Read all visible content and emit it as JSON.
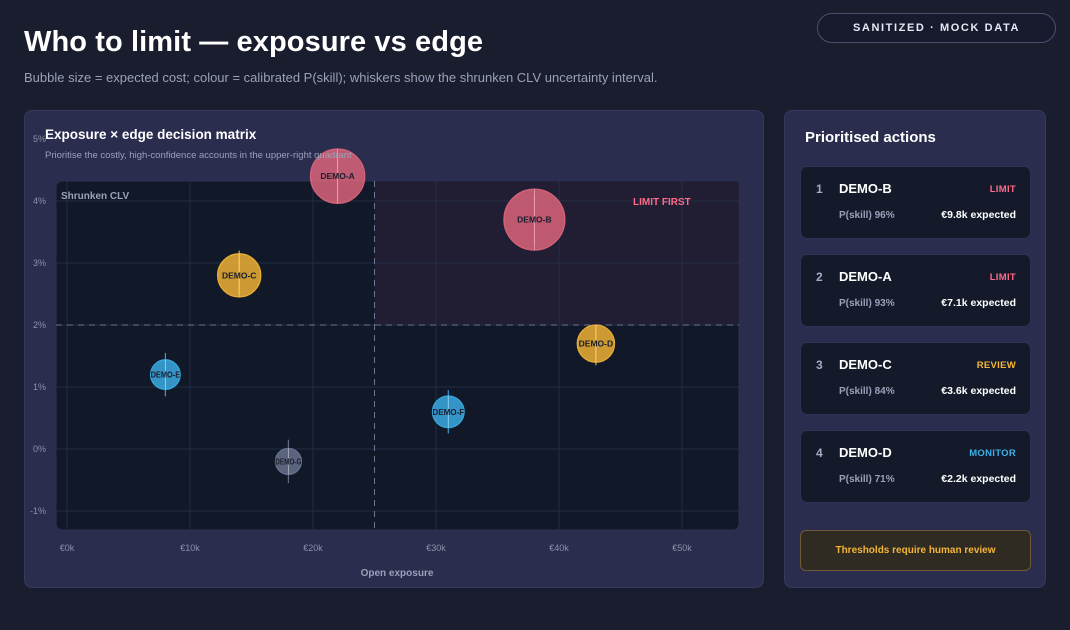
{
  "header": {
    "title": "Who to limit — exposure vs edge",
    "subtitle": "Bubble size = expected cost; colour = calibrated P(skill); whiskers show the shrunken CLV uncertainty interval.",
    "badge": "SANITIZED · MOCK DATA"
  },
  "chart": {
    "title": "Exposure × edge decision matrix",
    "subtitle": "Prioritise the costly, high-confidence accounts in the upper-right quadrant",
    "quadrant_label": "LIMIT FIRST"
  },
  "colors": {
    "limit": "#e0667d",
    "review": "#f5b636",
    "monitor": "#3cb0e8",
    "neutral": "#6b7590"
  },
  "chart_data": {
    "type": "scatter",
    "title": "Exposure × edge decision matrix",
    "xlabel": "Open exposure",
    "ylabel": "Shrunken CLV",
    "xlim": [
      0,
      55000
    ],
    "ylim": [
      -1.2,
      5.1
    ],
    "x_ticks": [
      0,
      10000,
      20000,
      30000,
      40000,
      50000
    ],
    "x_tick_labels": [
      "€0k",
      "€10k",
      "€20k",
      "€30k",
      "€40k",
      "€50k"
    ],
    "y_ticks": [
      -1,
      0,
      1,
      2,
      3,
      4,
      5
    ],
    "y_tick_labels": [
      "-1%",
      "0%",
      "1%",
      "2%",
      "3%",
      "4%",
      "5%"
    ],
    "x_threshold": 25000,
    "y_threshold": 2,
    "grid": true,
    "points": [
      {
        "label": "DEMO-A",
        "x": 22000,
        "y": 4.4,
        "y_low": 4.0,
        "y_high": 4.7,
        "cost": 7.1,
        "color": "#e0667d"
      },
      {
        "label": "DEMO-B",
        "x": 38000,
        "y": 3.7,
        "y_low": 3.3,
        "y_high": 4.1,
        "cost": 9.8,
        "color": "#e0667d"
      },
      {
        "label": "DEMO-C",
        "x": 14000,
        "y": 2.8,
        "y_low": 2.5,
        "y_high": 3.2,
        "cost": 3.6,
        "color": "#f5b636"
      },
      {
        "label": "DEMO-D",
        "x": 43000,
        "y": 1.7,
        "y_low": 1.35,
        "y_high": 2.0,
        "cost": 2.2,
        "color": "#f5b636"
      },
      {
        "label": "DEMO-E",
        "x": 8000,
        "y": 1.2,
        "y_low": 0.85,
        "y_high": 1.55,
        "cost": 0.9,
        "color": "#3cb0e8"
      },
      {
        "label": "DEMO-F",
        "x": 31000,
        "y": 0.6,
        "y_low": 0.25,
        "y_high": 0.95,
        "cost": 1.2,
        "color": "#3cb0e8"
      },
      {
        "label": "DEMO-G",
        "x": 18000,
        "y": -0.2,
        "y_low": -0.55,
        "y_high": 0.15,
        "cost": 0.5,
        "color": "#6b7590"
      }
    ]
  },
  "sidebar": {
    "title": "Prioritised actions",
    "items": [
      {
        "rank": "1",
        "account": "DEMO-B",
        "action": "LIMIT",
        "action_color": "#ff6b86",
        "pskill": "P(skill) 96%",
        "cost": "€9.8k expected"
      },
      {
        "rank": "2",
        "account": "DEMO-A",
        "action": "LIMIT",
        "action_color": "#ff6b86",
        "pskill": "P(skill) 93%",
        "cost": "€7.1k expected"
      },
      {
        "rank": "3",
        "account": "DEMO-C",
        "action": "REVIEW",
        "action_color": "#f5b636",
        "pskill": "P(skill) 84%",
        "cost": "€3.6k expected"
      },
      {
        "rank": "4",
        "account": "DEMO-D",
        "action": "MONITOR",
        "action_color": "#3cb0e8",
        "pskill": "P(skill) 71%",
        "cost": "€2.2k expected"
      }
    ],
    "review_note": "Thresholds require human review"
  }
}
